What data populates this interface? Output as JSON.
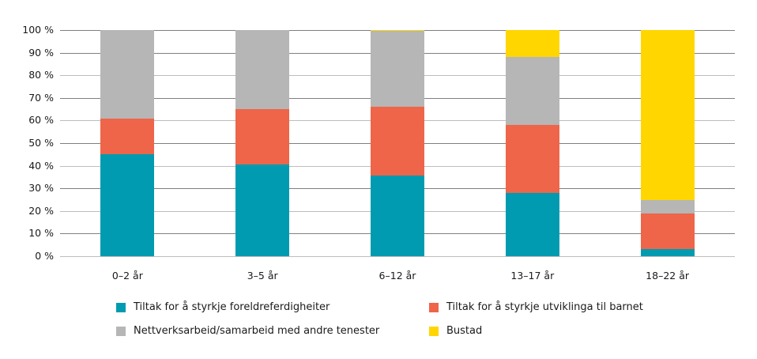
{
  "chart_data": {
    "type": "bar",
    "stacked": true,
    "percent": true,
    "title": "",
    "xlabel": "",
    "ylabel": "",
    "ylim": [
      0,
      100
    ],
    "y_ticks": [
      "0 %",
      "10 %",
      "20 %",
      "30 %",
      "40 %",
      "50 %",
      "60 %",
      "70 %",
      "80 %",
      "90 %",
      "100 %"
    ],
    "grid": true,
    "legend_position": "bottom",
    "categories": [
      "0–2 år",
      "3–5 år",
      "6–12 år",
      "13–17 år",
      "18–22 år"
    ],
    "series": [
      {
        "name": "Tiltak for å styrkje foreldreferdigheiter",
        "color": "#009bb0",
        "values": [
          45,
          40.5,
          35.5,
          28,
          3
        ]
      },
      {
        "name": "Tiltak for å styrkje utviklinga til barnet",
        "color": "#ee654a",
        "values": [
          16,
          24.5,
          30.5,
          30,
          16
        ]
      },
      {
        "name": "Nettverksarbeid/samarbeid med andre tenester",
        "color": "#b5b6b5",
        "values": [
          39,
          35,
          33.5,
          30,
          6
        ]
      },
      {
        "name": "Bustad",
        "color": "#ffd600",
        "values": [
          0,
          0,
          0.5,
          12,
          75
        ]
      }
    ]
  },
  "legend": [
    {
      "label": "Tiltak for å styrkje foreldreferdigheiter",
      "color": "#009bb0"
    },
    {
      "label": "Tiltak for å styrkje utviklinga til barnet",
      "color": "#ee654a"
    },
    {
      "label": "Nettverksarbeid/samarbeid med andre tenester",
      "color": "#b5b6b5"
    },
    {
      "label": "Bustad",
      "color": "#ffd600"
    }
  ]
}
